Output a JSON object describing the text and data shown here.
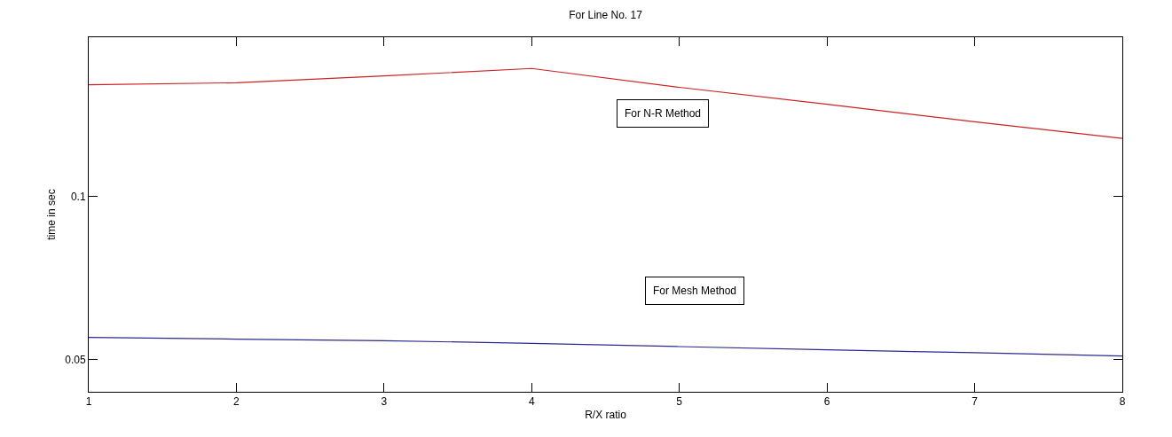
{
  "chart_data": {
    "type": "line",
    "title": "For Line No. 17",
    "xlabel": "R/X ratio",
    "ylabel": "time in sec",
    "x": [
      1,
      2,
      3,
      4,
      5,
      6,
      7,
      8
    ],
    "series": [
      {
        "color": "#cc2222",
        "values": [
          0.1344,
          0.135,
          0.1371,
          0.1394,
          0.1336,
          0.1284,
          0.123,
          0.1179
        ]
      },
      {
        "color": "#2a2a8c",
        "values": [
          0.0567,
          0.0562,
          0.0557,
          0.0549,
          0.0539,
          0.0529,
          0.052,
          0.051
        ]
      }
    ],
    "xlim": [
      1,
      8
    ],
    "xticks": [
      1,
      2,
      3,
      4,
      5,
      6,
      7,
      8
    ],
    "ylim": [
      0.04,
      0.149
    ],
    "yticks": [
      0.05,
      0.1
    ],
    "annotations": [
      "For N-R Method",
      "For Mesh Method"
    ],
    "marker": "none",
    "line_style": "solid"
  }
}
